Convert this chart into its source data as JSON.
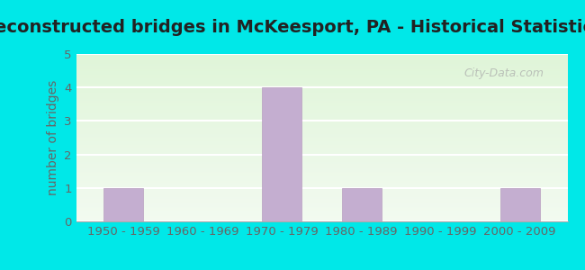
{
  "title": "Reconstructed bridges in McKeesport, PA - Historical Statistics",
  "categories": [
    "1950 - 1959",
    "1960 - 1969",
    "1970 - 1979",
    "1980 - 1989",
    "1990 - 1999",
    "2000 - 2009"
  ],
  "values": [
    1,
    0,
    4,
    1,
    0,
    1
  ],
  "bar_color": "#c4aed0",
  "bar_edge_color": "#b89fc0",
  "ylabel": "number of bridges",
  "ylim": [
    0,
    5
  ],
  "yticks": [
    0,
    1,
    2,
    3,
    4,
    5
  ],
  "title_fontsize": 14,
  "title_fontweight": "bold",
  "ylabel_fontsize": 10,
  "tick_fontsize": 9.5,
  "bg_outer": "#00e8e8",
  "bg_plot_top": "#f2faf0",
  "bg_plot_bottom": "#dff5d8",
  "grid_color": "#ffffff",
  "tick_color": "#666666",
  "bar_width": 0.5,
  "watermark": "City-Data.com"
}
